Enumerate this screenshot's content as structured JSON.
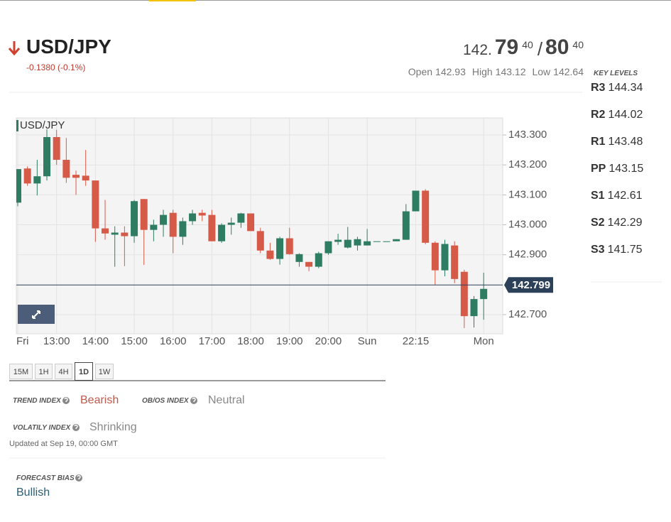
{
  "header": {
    "symbol": "USD/JPY",
    "change": "-0.1380 (-0.1%)",
    "bid": {
      "prefix": "142.",
      "big": "79",
      "pip": "40"
    },
    "separator": "/",
    "ask": {
      "big": "80",
      "pip": "40"
    },
    "stats": [
      {
        "label": "Open",
        "value": "142.93"
      },
      {
        "label": "High",
        "value": "143.12"
      },
      {
        "label": "Low",
        "value": "142.64"
      }
    ]
  },
  "key_levels": {
    "title": "KEY LEVELS",
    "levels": [
      {
        "name": "R3",
        "value": "144.34"
      },
      {
        "name": "R2",
        "value": "144.02"
      },
      {
        "name": "R1",
        "value": "143.48"
      },
      {
        "name": "PP",
        "value": "143.15"
      },
      {
        "name": "S1",
        "value": "142.61"
      },
      {
        "name": "S2",
        "value": "142.29"
      },
      {
        "name": "S3",
        "value": "141.75"
      }
    ]
  },
  "timeframes": {
    "tabs": [
      "15M",
      "1H",
      "4H",
      "1D",
      "1W"
    ],
    "active": "1D"
  },
  "indices": {
    "trend": {
      "label": "TREND INDEX",
      "value": "Bearish"
    },
    "obos": {
      "label": "OB/OS INDEX",
      "value": "Neutral"
    },
    "volatility": {
      "label": "VOLATILY INDEX",
      "value": "Shrinking"
    },
    "updated": "Updated at Sep 19, 00:00 GMT",
    "forecast": {
      "label": "FORECAST BIAS",
      "value": "Bullish"
    }
  },
  "chart_data": {
    "type": "candlestick",
    "title": "USD/JPY",
    "x": [
      "Fri",
      null,
      null,
      null,
      "13:00",
      null,
      null,
      null,
      "14:00",
      null,
      null,
      null,
      "15:00",
      null,
      null,
      null,
      "16:00",
      null,
      null,
      null,
      "17:00",
      null,
      null,
      null,
      "18:00",
      null,
      null,
      null,
      "19:00",
      null,
      null,
      null,
      "20:00",
      null,
      null,
      null,
      "Sun",
      null,
      null,
      null,
      null,
      "22:15",
      null,
      null,
      null,
      null,
      null,
      null,
      "Mon"
    ],
    "open": [
      143.074,
      143.188,
      143.138,
      143.162,
      143.293,
      143.217,
      143.167,
      143.164,
      143.148,
      142.988,
      142.967,
      142.974,
      142.962,
      143.086,
      142.983,
      143.0,
      143.04,
      142.96,
      143.012,
      143.04,
      143.033,
      142.945,
      143.0,
      143.007,
      143.038,
      142.979,
      142.914,
      142.886,
      142.955,
      142.876,
      142.876,
      142.86,
      142.905,
      142.943,
      142.924,
      142.931,
      142.931,
      142.945,
      142.945,
      142.945,
      142.95,
      143.045,
      143.114,
      142.94,
      142.848,
      142.931,
      142.843,
      142.695,
      142.752
    ],
    "high": [
      143.186,
      143.195,
      143.217,
      143.319,
      143.317,
      143.29,
      143.181,
      143.25,
      143.148,
      143.083,
      142.995,
      142.995,
      143.083,
      143.086,
      143.017,
      143.05,
      143.05,
      143.024,
      143.05,
      143.05,
      143.05,
      143.005,
      143.024,
      143.04,
      143.038,
      142.99,
      142.94,
      142.96,
      142.99,
      142.905,
      142.876,
      142.91,
      142.945,
      142.97,
      142.993,
      142.96,
      142.986,
      142.945,
      142.945,
      142.952,
      143.069,
      143.114,
      143.119,
      142.945,
      142.95,
      142.945,
      142.85,
      142.762,
      142.84
    ],
    "low": [
      143.062,
      143.13,
      143.098,
      143.148,
      143.2,
      143.14,
      143.1,
      143.13,
      142.943,
      142.95,
      142.86,
      142.862,
      142.94,
      142.866,
      142.945,
      142.96,
      142.905,
      142.933,
      143.0,
      143.012,
      142.945,
      142.94,
      142.967,
      142.99,
      142.979,
      142.905,
      142.883,
      142.867,
      142.9,
      142.86,
      142.845,
      142.855,
      142.9,
      142.933,
      142.921,
      142.914,
      142.931,
      142.945,
      142.945,
      142.945,
      142.95,
      143.045,
      142.935,
      142.8,
      142.828,
      142.805,
      142.655,
      142.657,
      142.683
    ],
    "close": [
      143.186,
      143.138,
      143.162,
      143.293,
      143.217,
      143.157,
      143.157,
      143.148,
      142.988,
      142.971,
      142.974,
      142.962,
      143.079,
      142.983,
      143.0,
      143.033,
      142.96,
      143.012,
      143.038,
      143.031,
      142.945,
      143.0,
      143.007,
      143.038,
      142.979,
      142.914,
      142.886,
      142.955,
      142.902,
      142.902,
      142.86,
      142.905,
      142.945,
      142.95,
      142.95,
      142.952,
      142.945,
      142.945,
      142.945,
      142.952,
      143.045,
      143.114,
      142.94,
      142.848,
      142.936,
      142.819,
      142.695,
      142.752,
      142.786
    ],
    "up_color": "#2e7d62",
    "down_color": "#d65a48",
    "last_price": 142.799,
    "last_price_color": "#2d4059",
    "ylim": [
      142.636,
      143.357
    ],
    "yticks": [
      {
        "value": 142.7,
        "label": "142.700"
      },
      {
        "value": 142.9,
        "label": "142.900"
      },
      {
        "value": 143.0,
        "label": "143.000"
      },
      {
        "value": 143.1,
        "label": "143.100"
      },
      {
        "value": 143.2,
        "label": "143.200"
      },
      {
        "value": 143.3,
        "label": "143.300"
      }
    ],
    "grid": true
  }
}
